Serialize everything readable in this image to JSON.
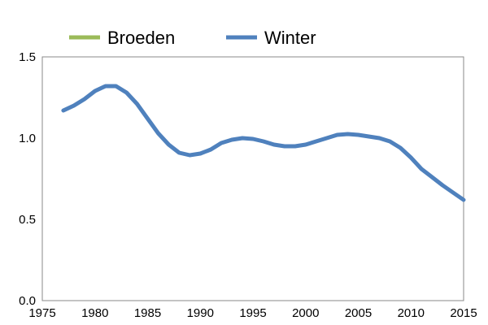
{
  "chart_data": {
    "type": "line",
    "title": "",
    "xlabel": "",
    "ylabel": "",
    "xlim": [
      1975,
      2015
    ],
    "ylim": [
      0.0,
      1.5
    ],
    "x_ticks": [
      "1975",
      "1980",
      "1985",
      "1990",
      "1995",
      "2000",
      "2005",
      "2010",
      "2015"
    ],
    "y_ticks": [
      "0.0",
      "0.5",
      "1.0",
      "1.5"
    ],
    "grid": false,
    "legend_position": "top",
    "series": [
      {
        "name": "Broeden",
        "color": "#9bbb59",
        "x": [],
        "y": []
      },
      {
        "name": "Winter",
        "color": "#4f81bd",
        "x": [
          1977,
          1978,
          1979,
          1980,
          1981,
          1982,
          1983,
          1984,
          1985,
          1986,
          1987,
          1988,
          1989,
          1990,
          1991,
          1992,
          1993,
          1994,
          1995,
          1996,
          1997,
          1998,
          1999,
          2000,
          2001,
          2002,
          2003,
          2004,
          2005,
          2006,
          2007,
          2008,
          2009,
          2010,
          2011,
          2012,
          2013,
          2014,
          2015
        ],
        "y": [
          1.17,
          1.2,
          1.24,
          1.29,
          1.32,
          1.32,
          1.28,
          1.21,
          1.12,
          1.03,
          0.96,
          0.91,
          0.895,
          0.905,
          0.93,
          0.97,
          0.99,
          1.0,
          0.995,
          0.98,
          0.96,
          0.95,
          0.95,
          0.96,
          0.98,
          1.0,
          1.02,
          1.025,
          1.02,
          1.01,
          1.0,
          0.98,
          0.94,
          0.88,
          0.81,
          0.76,
          0.71,
          0.665,
          0.62
        ]
      }
    ]
  }
}
